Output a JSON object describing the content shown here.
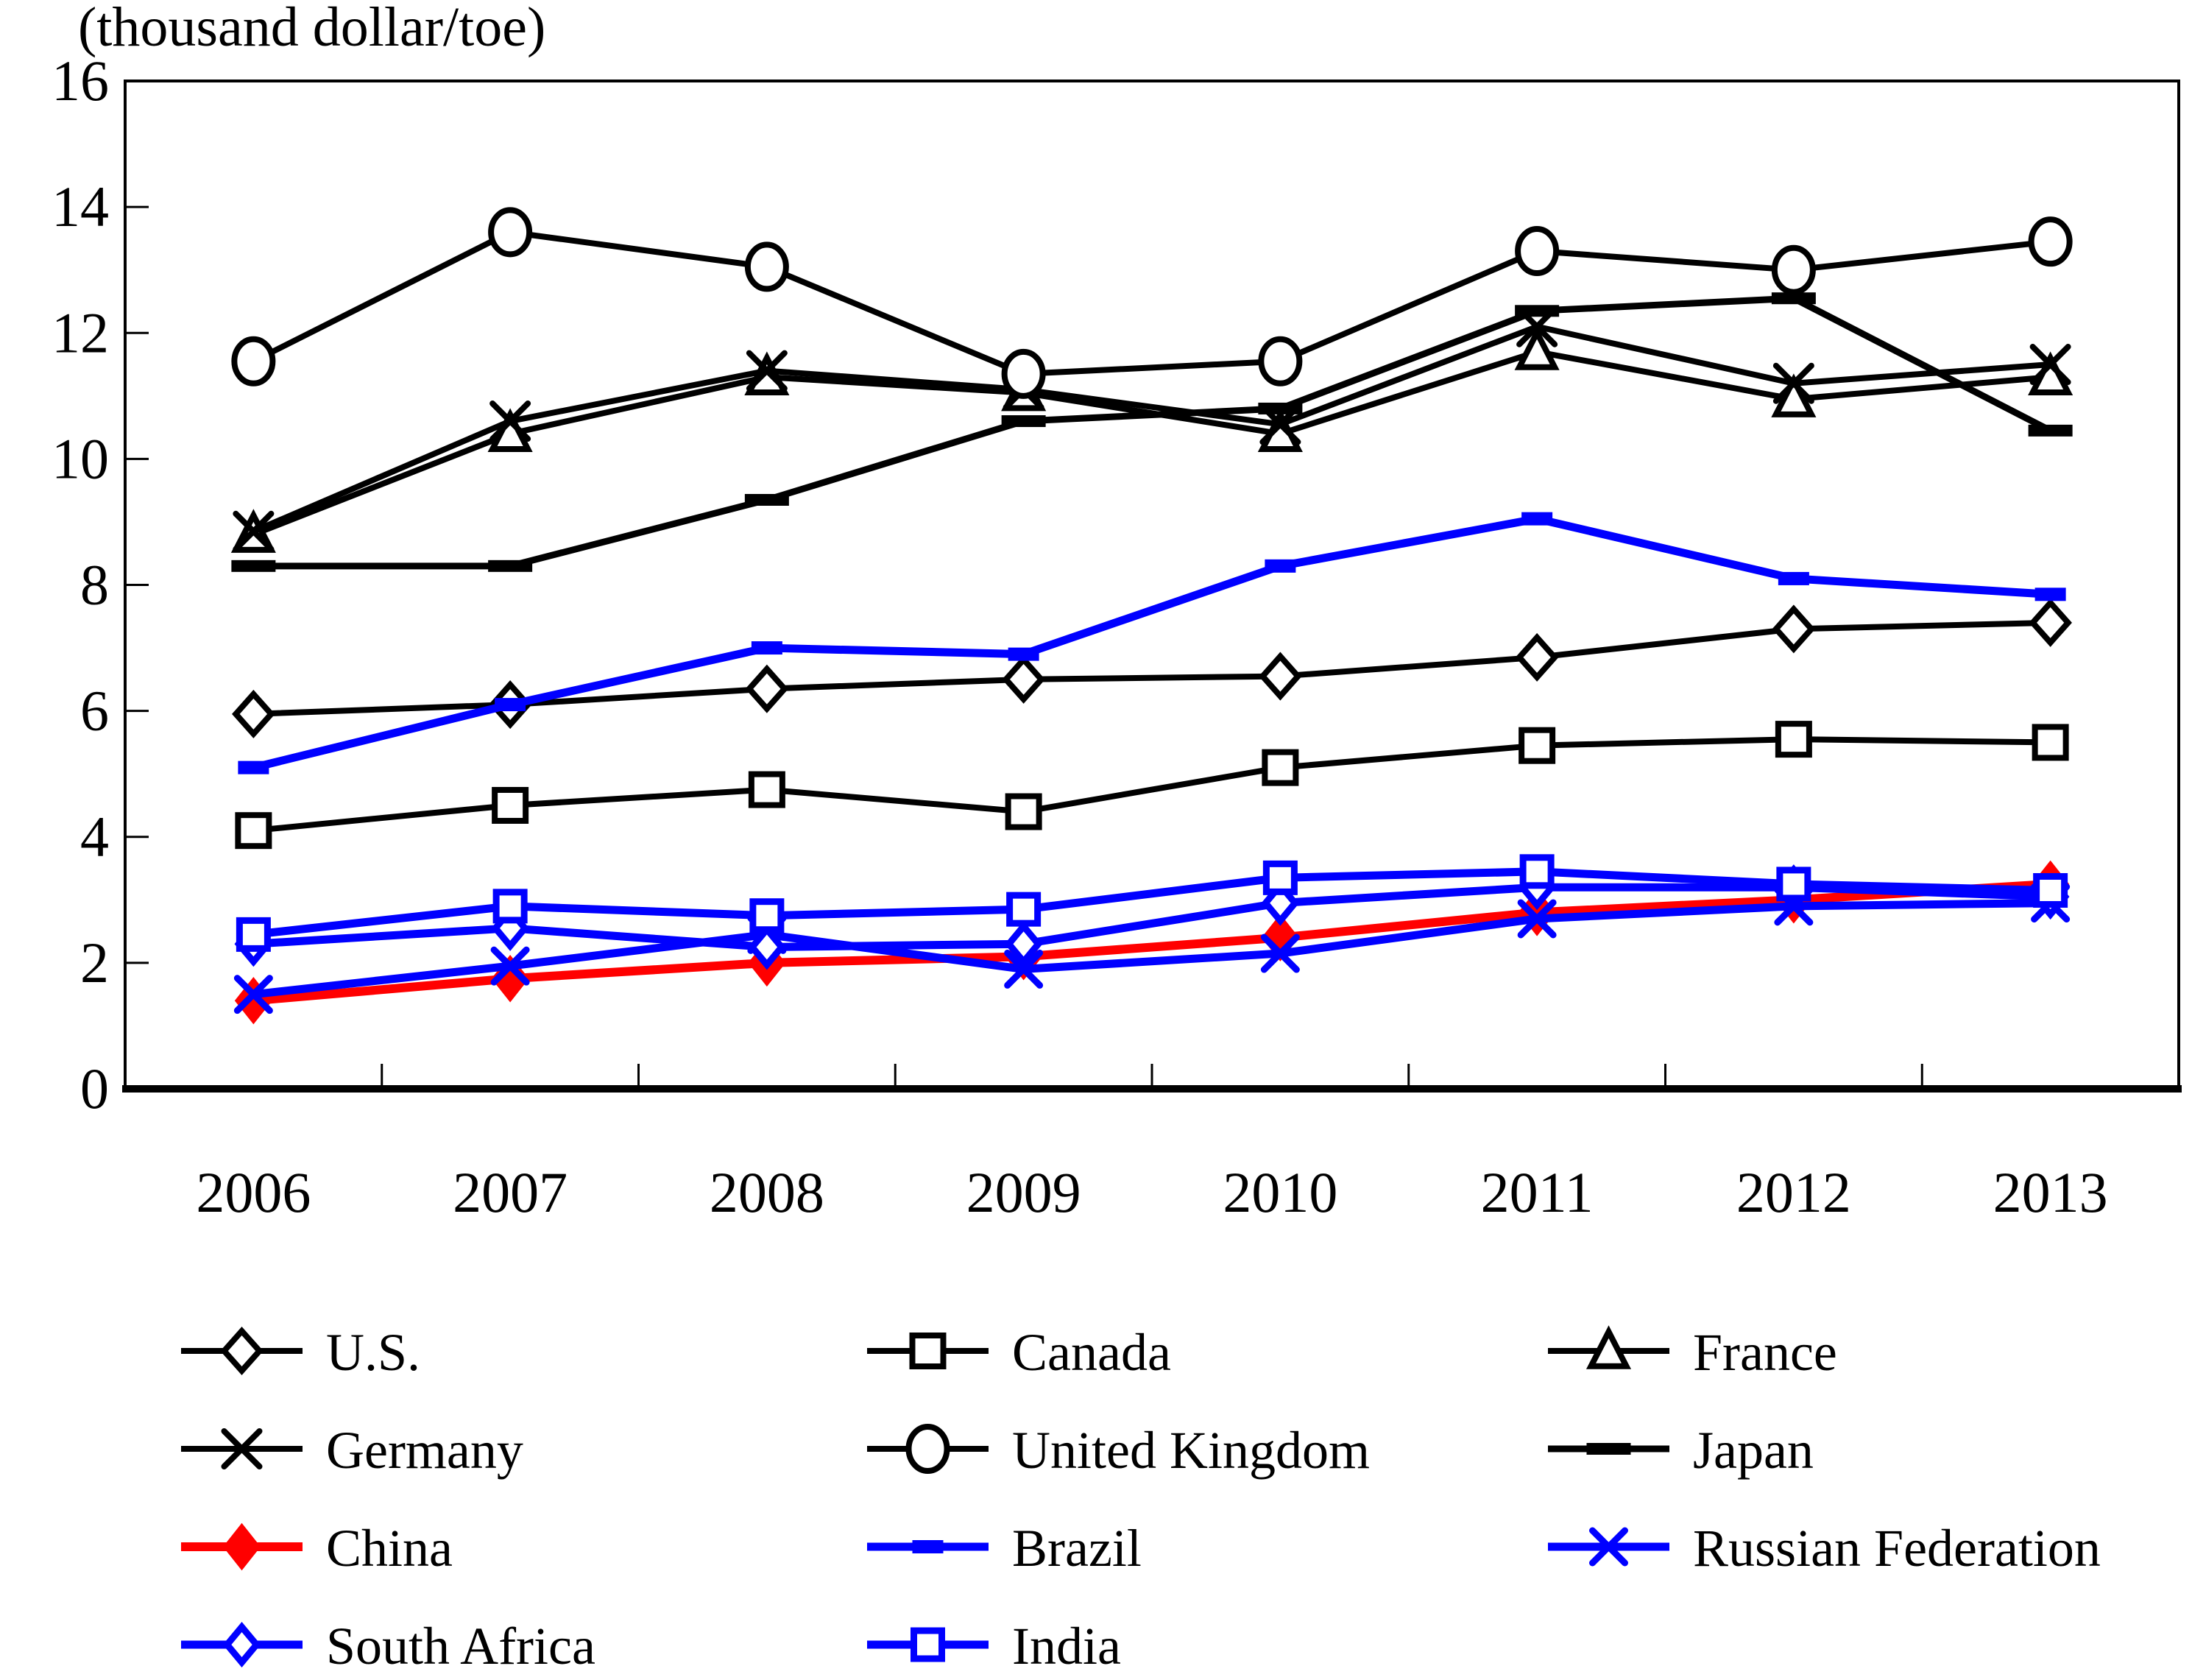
{
  "title": "(thousand dollar/toe)",
  "chart_data": {
    "type": "line",
    "title": "(thousand dollar/toe)",
    "xlabel": "",
    "ylabel": "thousand dollar/toe",
    "ylim": [
      0,
      16
    ],
    "ytick_step": 2,
    "y_tick_labels": [
      "0",
      "2",
      "4",
      "6",
      "8",
      "10",
      "12",
      "14",
      "16"
    ],
    "grid": false,
    "legend_position": "bottom",
    "categories": [
      "2006",
      "2007",
      "2008",
      "2009",
      "2010",
      "2011",
      "2012",
      "2013"
    ],
    "series": [
      {
        "name": "U.S.",
        "color": "#000000",
        "marker": "open-diamond-marker",
        "line_width": 8,
        "values": [
          5.95,
          6.1,
          6.35,
          6.5,
          6.55,
          6.85,
          7.3,
          7.4
        ]
      },
      {
        "name": "Canada",
        "color": "#000000",
        "marker": "open-square-marker",
        "line_width": 8,
        "values": [
          4.1,
          4.5,
          4.75,
          4.4,
          5.1,
          5.45,
          5.55,
          5.5
        ]
      },
      {
        "name": "France",
        "color": "#000000",
        "marker": "open-triangle-marker",
        "line_width": 8,
        "values": [
          8.8,
          10.4,
          11.3,
          11.05,
          10.4,
          11.7,
          10.95,
          11.3
        ]
      },
      {
        "name": "Germany",
        "color": "#000000",
        "marker": "x-marker",
        "line_width": 8,
        "values": [
          8.85,
          10.6,
          11.4,
          11.1,
          10.55,
          12.1,
          11.2,
          11.5
        ]
      },
      {
        "name": "United Kingdom",
        "color": "#000000",
        "marker": "open-circle-marker",
        "line_width": 8,
        "values": [
          11.55,
          13.6,
          13.05,
          11.35,
          11.55,
          13.3,
          13.0,
          13.45
        ]
      },
      {
        "name": "Japan",
        "color": "#000000",
        "marker": "filled-dash-marker",
        "line_width": 9,
        "values": [
          8.3,
          8.3,
          9.35,
          10.6,
          10.8,
          12.35,
          12.55,
          10.45
        ]
      },
      {
        "name": "China",
        "color": "#ff0000",
        "marker": "filled-diamond-marker",
        "line_width": 12,
        "values": [
          1.4,
          1.75,
          2.0,
          2.1,
          2.4,
          2.8,
          3.0,
          3.25
        ]
      },
      {
        "name": "Brazil",
        "color": "#0000ff",
        "marker": "filled-dash-marker",
        "line_width": 11,
        "values": [
          5.1,
          6.1,
          7.0,
          6.9,
          8.3,
          9.05,
          8.1,
          7.85
        ]
      },
      {
        "name": "Russian Federation",
        "color": "#0000ff",
        "marker": "x-marker",
        "line_width": 11,
        "values": [
          1.5,
          1.95,
          2.45,
          1.9,
          2.15,
          2.7,
          2.9,
          2.95
        ]
      },
      {
        "name": "South Africa",
        "color": "#0000ff",
        "marker": "open-diamond-marker",
        "line_width": 11,
        "values": [
          2.3,
          2.55,
          2.25,
          2.3,
          2.95,
          3.2,
          3.2,
          3.05
        ]
      },
      {
        "name": "India",
        "color": "#0000ff",
        "marker": "open-square-marker",
        "line_width": 11,
        "values": [
          2.45,
          2.9,
          2.75,
          2.85,
          3.35,
          3.45,
          3.25,
          3.15
        ]
      }
    ]
  }
}
